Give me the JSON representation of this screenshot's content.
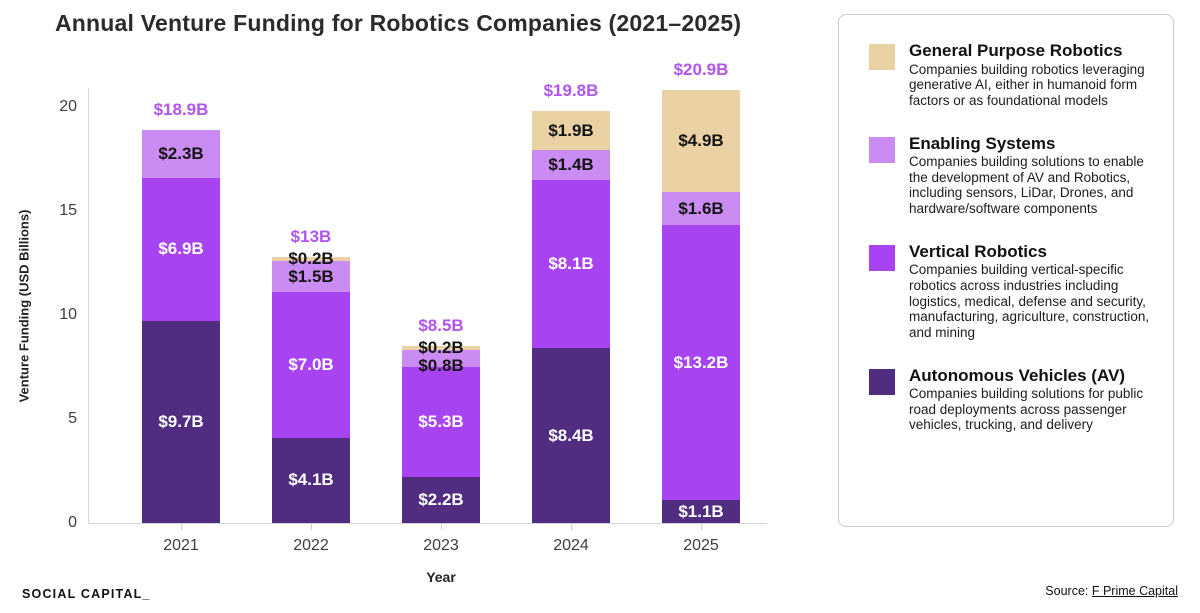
{
  "title": "Annual Venture Funding for Robotics Companies (2021–2025)",
  "y_axis": {
    "label": "Venture Funding (USD Billions)",
    "ticks": [
      0,
      5,
      10,
      15,
      20
    ]
  },
  "x_axis": {
    "label": "Year"
  },
  "footer": {
    "brand": "SOCIAL CAPITAL_",
    "source_prefix": "Source: ",
    "source_link": "F Prime Capital"
  },
  "colors": {
    "general_purpose": "#e9d1a4",
    "enabling": "#ca8cf2",
    "vertical": "#a843f2",
    "av": "#502d81",
    "total_label": "#b155ee",
    "dark_text": "#141414",
    "light_text": "#ffffff"
  },
  "chart_data": {
    "type": "bar",
    "stacked": true,
    "title": "Annual Venture Funding for Robotics Companies (2021–2025)",
    "xlabel": "Year",
    "ylabel": "Venture Funding (USD Billions)",
    "ylim": [
      0,
      20.9
    ],
    "grid": false,
    "legend_position": "right",
    "categories": [
      "2021",
      "2022",
      "2023",
      "2024",
      "2025"
    ],
    "series": [
      {
        "name": "Autonomous Vehicles (AV)",
        "key": "av",
        "color": "#502d81",
        "label_color": "#ffffff",
        "values": [
          9.7,
          4.1,
          2.2,
          8.4,
          1.1
        ],
        "labels": [
          "$9.7B",
          "$4.1B",
          "$2.2B",
          "$8.4B",
          "$1.1B"
        ]
      },
      {
        "name": "Vertical Robotics",
        "key": "vertical",
        "color": "#a843f2",
        "label_color": "#ffffff",
        "values": [
          6.9,
          7.0,
          5.3,
          8.1,
          13.2
        ],
        "labels": [
          "$6.9B",
          "$7.0B",
          "$5.3B",
          "$8.1B",
          "$13.2B"
        ]
      },
      {
        "name": "Enabling Systems",
        "key": "enabling",
        "color": "#ca8cf2",
        "label_color": "#141414",
        "values": [
          2.3,
          1.5,
          0.8,
          1.4,
          1.6
        ],
        "labels": [
          "$2.3B",
          "$1.5B",
          "$0.8B",
          "$1.4B",
          "$1.6B"
        ]
      },
      {
        "name": "General Purpose Robotics",
        "key": "gpr",
        "color": "#e9d1a4",
        "label_color": "#141414",
        "values": [
          0,
          0.2,
          0.2,
          1.9,
          4.9
        ],
        "labels": [
          "",
          "$0.2B",
          "$0.2B",
          "$1.9B",
          "$4.9B"
        ]
      }
    ],
    "totals": [
      "$18.9B",
      "$13B",
      "$8.5B",
      "$19.8B",
      "$20.9B"
    ],
    "total_values": [
      18.9,
      13,
      8.5,
      19.8,
      20.9
    ]
  },
  "legend": {
    "entries": [
      {
        "key": "gpr",
        "color": "#e9d1a4",
        "heading": "General Purpose Robotics",
        "description": "Companies building robotics leveraging generative AI, either in humanoid form factors or as foundational models"
      },
      {
        "key": "enabling",
        "color": "#ca8cf2",
        "heading": "Enabling Systems",
        "description": "Companies building solutions to enable the development of AV and Robotics, including sensors, LiDar, Drones, and hardware/software components"
      },
      {
        "key": "vertical",
        "color": "#a843f2",
        "heading": "Vertical Robotics",
        "description": "Companies building vertical-specific robotics across industries including logistics, medical, defense and security, manufacturing, agriculture, construction, and mining"
      },
      {
        "key": "av",
        "color": "#502d81",
        "heading": "Autonomous Vehicles (AV)",
        "description": "Companies building solutions for public road deployments across passenger vehicles, trucking, and delivery"
      }
    ]
  }
}
